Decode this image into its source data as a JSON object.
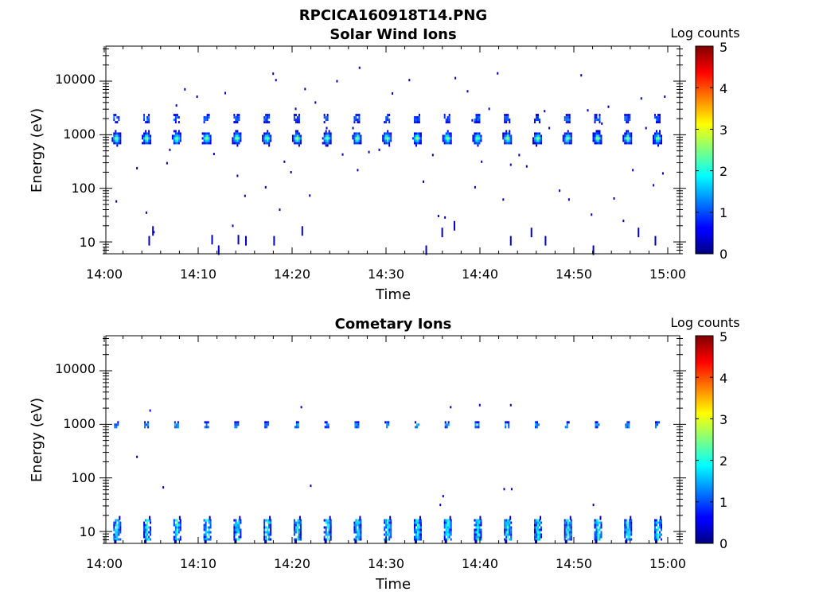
{
  "figure": {
    "filename": "RPCICA160918T14.PNG"
  },
  "colors": {
    "axis": "#000000",
    "background": "#ffffff"
  },
  "chart_data": [
    {
      "type": "heatmap",
      "title": "Solar Wind Ions",
      "xlabel": "Time",
      "ylabel": "Energy (eV)",
      "x_range": [
        "14:00",
        "15:00"
      ],
      "x_ticks": [
        "14:00",
        "14:10",
        "14:20",
        "14:30",
        "14:40",
        "14:50",
        "15:00"
      ],
      "y_scale": "log",
      "y_range": [
        6,
        45000
      ],
      "y_ticks": [
        "10",
        "100",
        "1000",
        "10000"
      ],
      "colorbar": {
        "label": "Log counts",
        "range": [
          0,
          5
        ],
        "ticks": [
          "0",
          "1",
          "2",
          "3",
          "4",
          "5"
        ],
        "colormap": "jet"
      },
      "sweep_minutes": [
        1.3,
        4.5,
        7.7,
        10.9,
        14.1,
        17.3,
        20.5,
        23.7,
        26.9,
        30.1,
        33.3,
        36.5,
        39.7,
        42.9,
        46.1,
        49.3,
        52.5,
        55.7,
        58.9
      ],
      "main_peak": {
        "energy_ev": 900,
        "log_counts_max": 2.8
      },
      "secondary_peak": {
        "energy_ev": 2000,
        "log_counts_max": 1.2
      },
      "scatter_points": [
        [
          1.2,
          60,
          0.3
        ],
        [
          3.4,
          250,
          0.3
        ],
        [
          4.4,
          37,
          0.4
        ],
        [
          5.2,
          16,
          0.3
        ],
        [
          6.6,
          310,
          0.4
        ],
        [
          6.9,
          550,
          0.3
        ],
        [
          7.6,
          3700,
          0.5
        ],
        [
          8.5,
          7400,
          0.4
        ],
        [
          9.8,
          5400,
          0.3
        ],
        [
          11.6,
          460,
          0.3
        ],
        [
          12.8,
          6300,
          0.3
        ],
        [
          13.6,
          21,
          0.3
        ],
        [
          14.1,
          180,
          0.3
        ],
        [
          14.9,
          76,
          0.3
        ],
        [
          17.1,
          110,
          0.3
        ],
        [
          17.9,
          14500,
          0.3
        ],
        [
          18.2,
          11000,
          0.3
        ],
        [
          18.6,
          42,
          0.3
        ],
        [
          19.1,
          330,
          0.3
        ],
        [
          19.8,
          210,
          0.3
        ],
        [
          20.3,
          3200,
          0.3
        ],
        [
          21.3,
          7500,
          0.3
        ],
        [
          21.8,
          77,
          0.3
        ],
        [
          22.4,
          4200,
          0.3
        ],
        [
          23.6,
          1400,
          0.3
        ],
        [
          24.7,
          10500,
          0.3
        ],
        [
          25.3,
          450,
          0.3
        ],
        [
          26.4,
          1400,
          0.3
        ],
        [
          26.9,
          230,
          0.3
        ],
        [
          27.1,
          18700,
          0.3
        ],
        [
          28.1,
          500,
          0.3
        ],
        [
          29.2,
          550,
          0.3
        ],
        [
          30.6,
          6200,
          0.3
        ],
        [
          32.4,
          11000,
          0.3
        ],
        [
          33.9,
          140,
          0.3
        ],
        [
          35.5,
          32,
          0.3
        ],
        [
          36.2,
          30,
          0.3
        ],
        [
          37.3,
          12000,
          0.3
        ],
        [
          38.6,
          6800,
          0.3
        ],
        [
          39.4,
          110,
          0.3
        ],
        [
          40.1,
          330,
          0.3
        ],
        [
          40.9,
          3200,
          0.3
        ],
        [
          41.8,
          14700,
          0.3
        ],
        [
          42.4,
          65,
          0.3
        ],
        [
          43.2,
          290,
          0.3
        ],
        [
          44.1,
          440,
          0.3
        ],
        [
          44.9,
          270,
          0.3
        ],
        [
          46.8,
          2900,
          0.3
        ],
        [
          47.3,
          1400,
          0.3
        ],
        [
          48.4,
          95,
          0.3
        ],
        [
          49.4,
          65,
          0.3
        ],
        [
          50.7,
          13500,
          0.3
        ],
        [
          51.4,
          3000,
          0.3
        ],
        [
          51.8,
          34,
          0.3
        ],
        [
          52.9,
          1700,
          0.3
        ],
        [
          53.6,
          3500,
          0.3
        ],
        [
          54.2,
          68,
          0.3
        ],
        [
          55.2,
          26,
          0.3
        ],
        [
          56.2,
          230,
          0.3
        ],
        [
          57.1,
          5000,
          0.3
        ],
        [
          57.6,
          1400,
          0.3
        ],
        [
          58.4,
          120,
          0.3
        ],
        [
          59.4,
          200,
          0.3
        ],
        [
          59.6,
          5400,
          0.3
        ],
        [
          34.9,
          440,
          0.3
        ],
        [
          39.1,
          1950,
          0.3
        ]
      ],
      "low_streaks": [
        [
          4.7,
          10.5
        ],
        [
          5.1,
          16
        ],
        [
          11.4,
          11
        ],
        [
          12.1,
          7
        ],
        [
          14.2,
          11
        ],
        [
          15.0,
          10.5
        ],
        [
          18.0,
          10.5
        ],
        [
          21.0,
          16
        ],
        [
          34.2,
          7
        ],
        [
          35.9,
          15
        ],
        [
          37.2,
          20
        ],
        [
          43.2,
          10.5
        ],
        [
          45.4,
          15
        ],
        [
          46.9,
          10.5
        ],
        [
          52.0,
          7
        ],
        [
          56.8,
          15
        ],
        [
          58.6,
          10.5
        ]
      ]
    },
    {
      "type": "heatmap",
      "title": "Cometary Ions",
      "xlabel": "Time",
      "ylabel": "Energy (eV)",
      "x_range": [
        "14:00",
        "15:00"
      ],
      "x_ticks": [
        "14:00",
        "14:10",
        "14:20",
        "14:30",
        "14:40",
        "14:50",
        "15:00"
      ],
      "y_scale": "log",
      "y_range": [
        6,
        45000
      ],
      "y_ticks": [
        "10",
        "100",
        "1000",
        "10000"
      ],
      "colorbar": {
        "label": "Log counts",
        "range": [
          0,
          5
        ],
        "ticks": [
          "0",
          "1",
          "2",
          "3",
          "4",
          "5"
        ],
        "colormap": "jet"
      },
      "sweep_minutes": [
        1.3,
        4.5,
        7.7,
        10.9,
        14.1,
        17.3,
        20.5,
        23.7,
        26.9,
        30.1,
        33.3,
        36.5,
        39.7,
        42.9,
        46.1,
        49.3,
        52.5,
        55.7,
        58.9
      ],
      "main_peak": {
        "energy_ev": 1000,
        "log_counts_max": 1.5
      },
      "low_band": {
        "energy_range_ev": [
          7,
          17
        ],
        "log_counts_max": 1.9
      },
      "scatter_points": [
        [
          3.4,
          260,
          0.3
        ],
        [
          4.8,
          1900,
          0.5
        ],
        [
          6.2,
          70,
          0.3
        ],
        [
          20.9,
          2200,
          0.4
        ],
        [
          21.9,
          75,
          0.3
        ],
        [
          35.7,
          33,
          0.4
        ],
        [
          36.0,
          48,
          0.3
        ],
        [
          36.8,
          2200,
          0.4
        ],
        [
          39.9,
          2400,
          0.4
        ],
        [
          42.5,
          65,
          0.3
        ],
        [
          43.2,
          2400,
          0.3
        ],
        [
          43.3,
          65,
          0.3
        ],
        [
          52.0,
          33,
          0.3
        ]
      ]
    }
  ]
}
